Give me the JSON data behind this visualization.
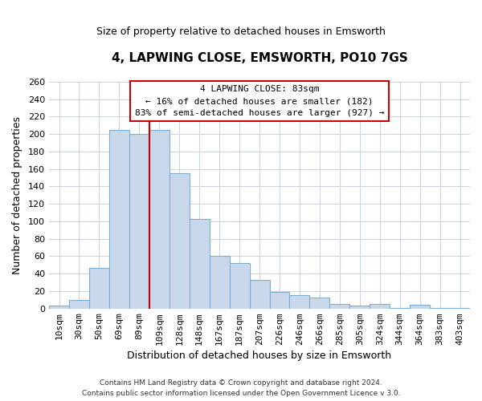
{
  "title": "4, LAPWING CLOSE, EMSWORTH, PO10 7GS",
  "subtitle": "Size of property relative to detached houses in Emsworth",
  "xlabel": "Distribution of detached houses by size in Emsworth",
  "ylabel": "Number of detached properties",
  "bar_labels": [
    "10sqm",
    "30sqm",
    "50sqm",
    "69sqm",
    "89sqm",
    "109sqm",
    "128sqm",
    "148sqm",
    "167sqm",
    "187sqm",
    "207sqm",
    "226sqm",
    "246sqm",
    "266sqm",
    "285sqm",
    "305sqm",
    "324sqm",
    "344sqm",
    "364sqm",
    "383sqm",
    "403sqm"
  ],
  "bar_values": [
    3,
    10,
    47,
    205,
    200,
    205,
    155,
    103,
    60,
    52,
    33,
    19,
    15,
    13,
    5,
    3,
    5,
    1,
    4,
    1,
    1
  ],
  "bar_color": "#c8d8ea",
  "bar_edge_color": "#7bafd4",
  "vline_color": "#cc0000",
  "annotation_title": "4 LAPWING CLOSE: 83sqm",
  "annotation_line1": "← 16% of detached houses are smaller (182)",
  "annotation_line2": "83% of semi-detached houses are larger (927) →",
  "annotation_box_edge": "#cc0000",
  "footer_line1": "Contains HM Land Registry data © Crown copyright and database right 2024.",
  "footer_line2": "Contains public sector information licensed under the Open Government Licence v 3.0.",
  "ylim": [
    0,
    260
  ],
  "yticks": [
    0,
    20,
    40,
    60,
    80,
    100,
    120,
    140,
    160,
    180,
    200,
    220,
    240,
    260
  ],
  "figsize": [
    6.0,
    5.0
  ],
  "dpi": 100,
  "background_color": "#ffffff",
  "plot_background_color": "#ffffff",
  "grid_color": "#c8d4e0"
}
